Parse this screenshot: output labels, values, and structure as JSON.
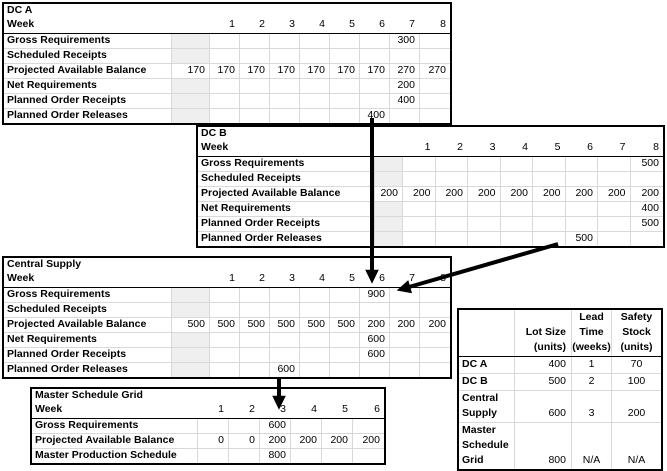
{
  "dc_a": {
    "title": "DC A",
    "week_label": "Week",
    "weeks": [
      "1",
      "2",
      "3",
      "4",
      "5",
      "6",
      "7",
      "8"
    ],
    "rows": [
      {
        "label": "Gross Requirements",
        "initial": "",
        "shaded": true,
        "values": [
          "",
          "",
          "",
          "",
          "",
          "",
          "300",
          ""
        ]
      },
      {
        "label": "Scheduled Receipts",
        "initial": "",
        "shaded": true,
        "values": [
          "",
          "",
          "",
          "",
          "",
          "",
          "",
          ""
        ]
      },
      {
        "label": "Projected Available Balance",
        "initial": "170",
        "shaded": false,
        "values": [
          "170",
          "170",
          "170",
          "170",
          "170",
          "170",
          "270",
          "270"
        ]
      },
      {
        "label": "Net Requirements",
        "initial": "",
        "shaded": true,
        "values": [
          "",
          "",
          "",
          "",
          "",
          "",
          "200",
          ""
        ]
      },
      {
        "label": "Planned Order Receipts",
        "initial": "",
        "shaded": true,
        "values": [
          "",
          "",
          "",
          "",
          "",
          "",
          "400",
          ""
        ]
      },
      {
        "label": "Planned Order Releases",
        "initial": "",
        "shaded": true,
        "values": [
          "",
          "",
          "",
          "",
          "",
          "400",
          "",
          ""
        ]
      }
    ]
  },
  "dc_b": {
    "title": "DC B",
    "week_label": "Week",
    "weeks": [
      "1",
      "2",
      "3",
      "4",
      "5",
      "6",
      "7",
      "8"
    ],
    "rows": [
      {
        "label": "Gross Requirements",
        "initial": "",
        "shaded": true,
        "values": [
          "",
          "",
          "",
          "",
          "",
          "",
          "",
          "500"
        ]
      },
      {
        "label": "Scheduled Receipts",
        "initial": "",
        "shaded": true,
        "values": [
          "",
          "",
          "",
          "",
          "",
          "",
          "",
          ""
        ]
      },
      {
        "label": "Projected Available Balance",
        "initial": "200",
        "shaded": false,
        "values": [
          "200",
          "200",
          "200",
          "200",
          "200",
          "200",
          "200",
          "200"
        ]
      },
      {
        "label": "Net Requirements",
        "initial": "",
        "shaded": true,
        "values": [
          "",
          "",
          "",
          "",
          "",
          "",
          "",
          "400"
        ]
      },
      {
        "label": "Planned Order Receipts",
        "initial": "",
        "shaded": true,
        "values": [
          "",
          "",
          "",
          "",
          "",
          "",
          "",
          "500"
        ]
      },
      {
        "label": "Planned Order Releases",
        "initial": "",
        "shaded": true,
        "values": [
          "",
          "",
          "",
          "",
          "",
          "500",
          "",
          ""
        ]
      }
    ]
  },
  "central_supply": {
    "title": "Central Supply",
    "week_label": "Week",
    "weeks": [
      "1",
      "2",
      "3",
      "4",
      "5",
      "6",
      "7",
      "8"
    ],
    "rows": [
      {
        "label": "Gross Requirements",
        "initial": "",
        "shaded": true,
        "values": [
          "",
          "",
          "",
          "",
          "",
          "900",
          "",
          ""
        ]
      },
      {
        "label": "Scheduled Receipts",
        "initial": "",
        "shaded": true,
        "values": [
          "",
          "",
          "",
          "",
          "",
          "",
          "",
          ""
        ]
      },
      {
        "label": "Projected Available Balance",
        "initial": "500",
        "shaded": false,
        "values": [
          "500",
          "500",
          "500",
          "500",
          "500",
          "200",
          "200",
          "200"
        ]
      },
      {
        "label": "Net Requirements",
        "initial": "",
        "shaded": true,
        "values": [
          "",
          "",
          "",
          "",
          "",
          "600",
          "",
          ""
        ]
      },
      {
        "label": "Planned Order Receipts",
        "initial": "",
        "shaded": true,
        "values": [
          "",
          "",
          "",
          "",
          "",
          "600",
          "",
          ""
        ]
      },
      {
        "label": "Planned Order Releases",
        "initial": "",
        "shaded": true,
        "values": [
          "",
          "",
          "600",
          "",
          "",
          "",
          "",
          ""
        ]
      }
    ]
  },
  "master_schedule": {
    "title": "Master Schedule Grid",
    "week_label": "Week",
    "weeks": [
      "1",
      "2",
      "3",
      "4",
      "5",
      "6"
    ],
    "rows": [
      {
        "label": "Gross Requirements",
        "values": [
          "",
          "",
          "600",
          "",
          "",
          ""
        ]
      },
      {
        "label": "Projected Available Balance",
        "values": [
          "0",
          "0",
          "200",
          "200",
          "200",
          "200"
        ]
      },
      {
        "label": "Master Production Schedule",
        "values": [
          "",
          "",
          "800",
          "",
          "",
          ""
        ]
      }
    ]
  },
  "parameters": {
    "headers": [
      "",
      "Lot Size\n(units)",
      "Lead\nTime\n(weeks)",
      "Safety\nStock\n(units)"
    ],
    "rows": [
      {
        "label": "DC A",
        "lot_size": "400",
        "lead_time": "1",
        "safety_stock": "70"
      },
      {
        "label": "DC B",
        "lot_size": "500",
        "lead_time": "2",
        "safety_stock": "100"
      },
      {
        "label": "Central\nSupply",
        "lot_size": "600",
        "lead_time": "3",
        "safety_stock": "200"
      },
      {
        "label": "Master\nSchedule\nGrid",
        "lot_size": "800",
        "lead_time": "N/A",
        "safety_stock": "N/A"
      }
    ]
  },
  "colors": {
    "border": "#000000",
    "gridline": "#d9d9d9",
    "shaded_cell": "#efefef",
    "arrow": "#000000",
    "background": "#ffffff"
  }
}
